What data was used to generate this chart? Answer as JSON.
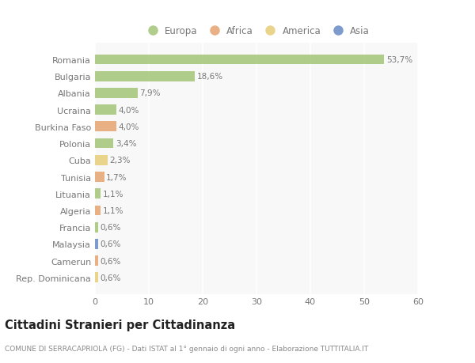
{
  "countries": [
    "Romania",
    "Bulgaria",
    "Albania",
    "Ucraina",
    "Burkina Faso",
    "Polonia",
    "Cuba",
    "Tunisia",
    "Lituania",
    "Algeria",
    "Francia",
    "Malaysia",
    "Camerun",
    "Rep. Dominicana"
  ],
  "values": [
    53.7,
    18.6,
    7.9,
    4.0,
    4.0,
    3.4,
    2.3,
    1.7,
    1.1,
    1.1,
    0.6,
    0.6,
    0.6,
    0.6
  ],
  "labels": [
    "53,7%",
    "18,6%",
    "7,9%",
    "4,0%",
    "4,0%",
    "3,4%",
    "2,3%",
    "1,7%",
    "1,1%",
    "1,1%",
    "0,6%",
    "0,6%",
    "0,6%",
    "0,6%"
  ],
  "colors": [
    "#a8c87e",
    "#a8c87e",
    "#a8c87e",
    "#a8c87e",
    "#e8a878",
    "#a8c87e",
    "#e8d080",
    "#e8a878",
    "#a8c87e",
    "#e8a878",
    "#a8c87e",
    "#7090c8",
    "#e8a878",
    "#e8d080"
  ],
  "legend_colors": [
    "#a8c87e",
    "#e8a878",
    "#e8d080",
    "#7090c8"
  ],
  "legend_labels": [
    "Europa",
    "Africa",
    "America",
    "Asia"
  ],
  "xlim": [
    0,
    60
  ],
  "xticks": [
    0,
    10,
    20,
    30,
    40,
    50,
    60
  ],
  "title": "Cittadini Stranieri per Cittadinanza",
  "subtitle": "COMUNE DI SERRACAPRIOLA (FG) - Dati ISTAT al 1° gennaio di ogni anno - Elaborazione TUTTITALIA.IT",
  "background_color": "#ffffff",
  "plot_bg_color": "#f8f8f8",
  "bar_height": 0.6,
  "grid_color": "#ffffff",
  "text_color": "#777777",
  "title_color": "#222222",
  "subtitle_color": "#888888",
  "label_fontsize": 7.5,
  "ytick_fontsize": 8.0,
  "xtick_fontsize": 8.0,
  "title_fontsize": 10.5,
  "subtitle_fontsize": 6.5
}
